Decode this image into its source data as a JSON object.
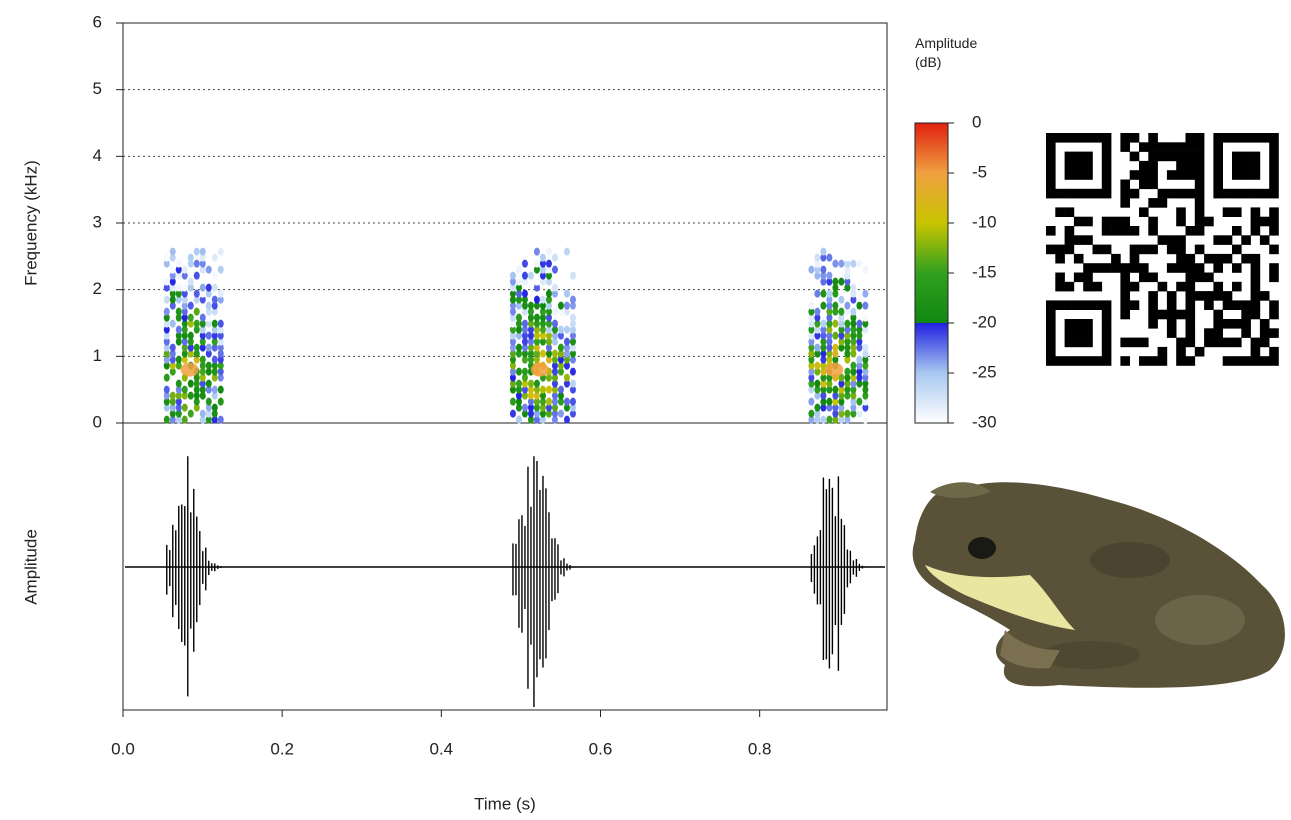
{
  "chart_data": [
    {
      "type": "spectrogram",
      "ylabel": "Frequency (kHz)",
      "ylim": [
        0,
        6
      ],
      "yticks": [
        0,
        1,
        2,
        3,
        4,
        5,
        6
      ],
      "grid": true,
      "xlim": [
        0,
        0.96
      ],
      "calls": [
        {
          "start": 0.055,
          "end": 0.125,
          "peak_frequency": 0.8
        },
        {
          "start": 0.49,
          "end": 0.57,
          "peak_frequency": 0.8
        },
        {
          "start": 0.865,
          "end": 0.935,
          "peak_frequency": 0.8
        }
      ],
      "colorbar": {
        "title": "Amplitude (dB)",
        "lim": [
          -30,
          0
        ],
        "ticks": [
          0,
          -5,
          -10,
          -15,
          -20,
          -25,
          -30
        ],
        "colorscale": [
          [
            -30,
            "#ffffff"
          ],
          [
            -25,
            "#a8c8f0"
          ],
          [
            -20,
            "#2020e0"
          ],
          [
            -20,
            "#108810"
          ],
          [
            -15,
            "#30a020"
          ],
          [
            -10,
            "#c8c400"
          ],
          [
            -5,
            "#f0a040"
          ],
          [
            0,
            "#e02010"
          ]
        ]
      }
    },
    {
      "type": "waveform",
      "ylabel": "Amplitude",
      "xlabel": "Time (s)",
      "xlim": [
        0,
        0.96
      ],
      "xticks": [
        {
          "value": 0,
          "label": "0.0"
        },
        0.2,
        0.4,
        0.6,
        0.8
      ],
      "color": "#000000"
    }
  ]
}
